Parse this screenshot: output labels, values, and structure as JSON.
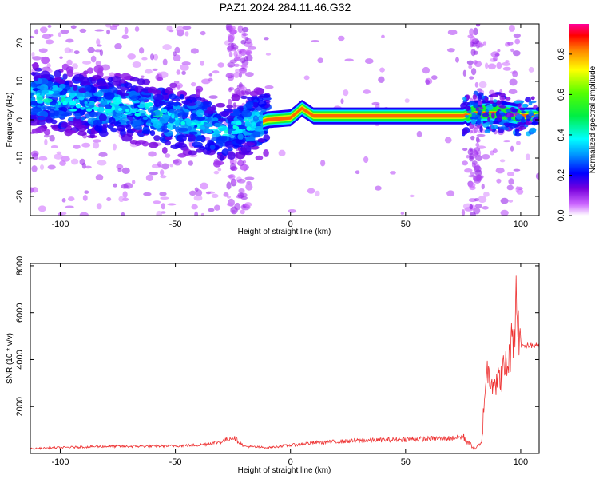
{
  "title": "PAZ1.2024.284.11.46.G32",
  "chart_data": [
    {
      "type": "heatmap",
      "xlabel": "Height of straight line (km)",
      "ylabel": "Frequency (Hz)",
      "xlim": [
        -113,
        108
      ],
      "ylim": [
        -25,
        25
      ],
      "x_ticks": [
        -100,
        -50,
        0,
        50,
        100
      ],
      "y_ticks": [
        -20,
        -10,
        0,
        10,
        20
      ],
      "colorbar": {
        "label": "Normalized spectral amplitude",
        "range": [
          0,
          0.95
        ],
        "ticks": [
          0.0,
          0.2,
          0.4,
          0.6,
          0.8
        ]
      },
      "ridge": [
        {
          "x": -110,
          "f": 6
        },
        {
          "x": -100,
          "f": 5
        },
        {
          "x": -90,
          "f": 4
        },
        {
          "x": -80,
          "f": 3.5
        },
        {
          "x": -70,
          "f": 3
        },
        {
          "x": -60,
          "f": 2
        },
        {
          "x": -50,
          "f": 0
        },
        {
          "x": -40,
          "f": -1
        },
        {
          "x": -30,
          "f": -3
        },
        {
          "x": -20,
          "f": -1
        },
        {
          "x": -15,
          "f": -1
        },
        {
          "x": -10,
          "f": 0
        },
        {
          "x": 0,
          "f": 0.5
        },
        {
          "x": 5,
          "f": 3
        },
        {
          "x": 10,
          "f": 1
        },
        {
          "x": 20,
          "f": 1
        },
        {
          "x": 50,
          "f": 1
        },
        {
          "x": 75,
          "f": 1
        },
        {
          "x": 80,
          "f": 2
        },
        {
          "x": 90,
          "f": 2
        },
        {
          "x": 100,
          "f": 1
        },
        {
          "x": 108,
          "f": 1
        }
      ]
    },
    {
      "type": "line",
      "xlabel": "Height of straight line (km)",
      "ylabel": "SNR (10 * v/v)",
      "xlim": [
        -113,
        108
      ],
      "ylim": [
        0,
        8100
      ],
      "x_ticks": [
        -100,
        -50,
        0,
        50,
        100
      ],
      "y_ticks": [
        2000,
        4000,
        6000,
        8000
      ],
      "color": "#ee3333",
      "envelope": [
        {
          "x": -113,
          "y": 200
        },
        {
          "x": -100,
          "y": 250
        },
        {
          "x": -80,
          "y": 300
        },
        {
          "x": -60,
          "y": 300
        },
        {
          "x": -40,
          "y": 350
        },
        {
          "x": -30,
          "y": 500
        },
        {
          "x": -25,
          "y": 700
        },
        {
          "x": -20,
          "y": 300
        },
        {
          "x": -10,
          "y": 250
        },
        {
          "x": 0,
          "y": 350
        },
        {
          "x": 10,
          "y": 450
        },
        {
          "x": 30,
          "y": 550
        },
        {
          "x": 50,
          "y": 600
        },
        {
          "x": 70,
          "y": 650
        },
        {
          "x": 75,
          "y": 700
        },
        {
          "x": 80,
          "y": 200
        },
        {
          "x": 83,
          "y": 400
        },
        {
          "x": 85,
          "y": 3500
        },
        {
          "x": 90,
          "y": 3000
        },
        {
          "x": 95,
          "y": 4000
        },
        {
          "x": 98,
          "y": 6000
        },
        {
          "x": 100,
          "y": 4600
        },
        {
          "x": 108,
          "y": 4600
        }
      ]
    }
  ]
}
